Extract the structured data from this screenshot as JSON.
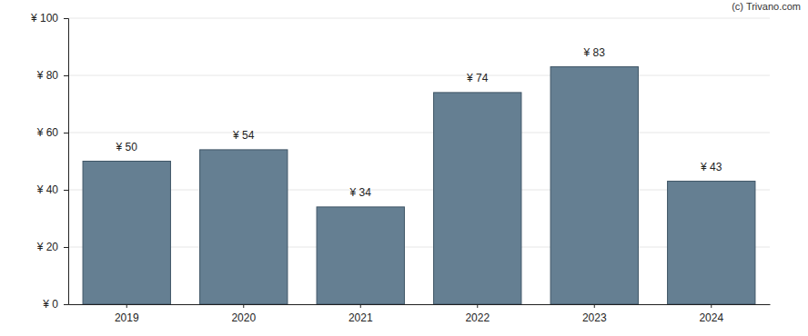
{
  "chart_data": {
    "type": "bar",
    "categories": [
      "2019",
      "2020",
      "2021",
      "2022",
      "2023",
      "2024"
    ],
    "values": [
      50,
      54,
      34,
      74,
      83,
      43
    ],
    "value_labels": [
      "¥ 50",
      "¥ 54",
      "¥ 34",
      "¥ 74",
      "¥ 83",
      "¥ 43"
    ],
    "data_labels": true,
    "color": "#657f92",
    "ylim": [
      0,
      100
    ],
    "yticks": [
      {
        "value": 0,
        "label": "¥ 0"
      },
      {
        "value": 20,
        "label": "¥ 20"
      },
      {
        "value": 40,
        "label": "¥ 40"
      },
      {
        "value": 60,
        "label": "¥ 60"
      },
      {
        "value": 80,
        "label": "¥ 80"
      },
      {
        "value": 100,
        "label": "¥ 100"
      }
    ],
    "grid": true,
    "annotations": [
      "(c) Trivano.com"
    ]
  }
}
